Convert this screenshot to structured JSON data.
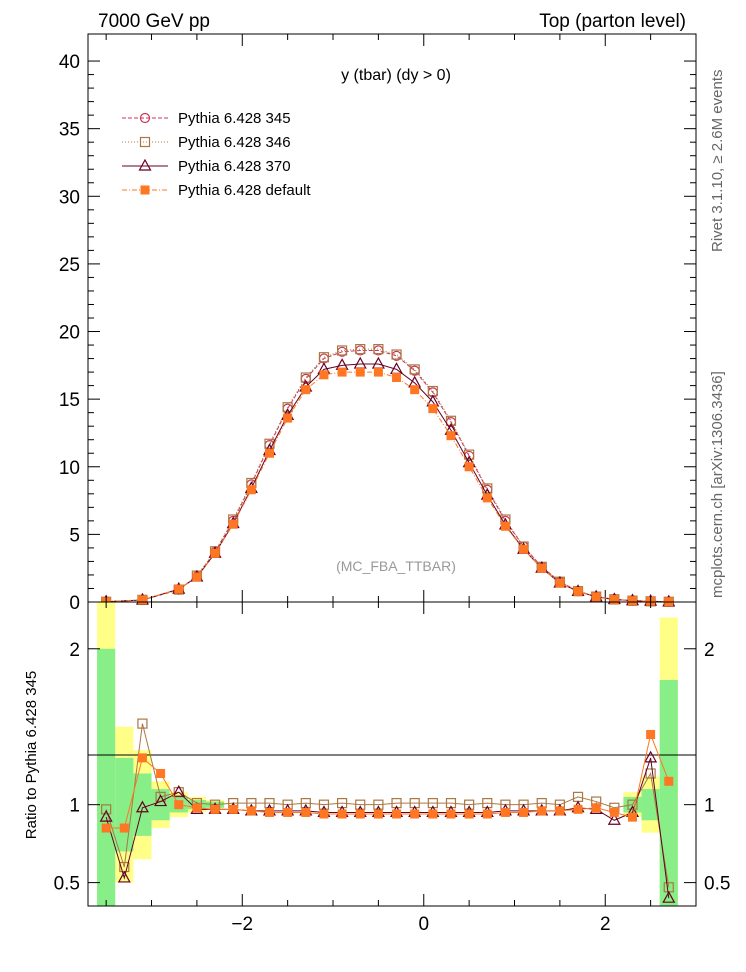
{
  "header": {
    "left": "7000 GeV pp",
    "right": "Top (parton level)"
  },
  "side_text": {
    "rivet": "Rivet 3.1.10, ≥ 2.6M events",
    "mcplots": "mcplots.cern.ch [arXiv:1306.3436]"
  },
  "analysis_tag": "(MC_FBA_TTBAR)",
  "chart_data": [
    {
      "type": "line",
      "panel": "main",
      "title": "y (tbar) (dy > 0)",
      "xlabel": "",
      "ylabel": "",
      "xlim": [
        -3.7,
        3.0
      ],
      "ylim": [
        0,
        42
      ],
      "yticks": [
        0,
        5,
        10,
        15,
        20,
        25,
        30,
        35,
        40
      ],
      "ytick_labels": [
        "0",
        "5",
        "10",
        "15",
        "20",
        "25",
        "30",
        "35",
        "40"
      ],
      "legend_position": "top-left",
      "series": [
        {
          "name": "Pythia 6.428 345",
          "color": "#cc3355",
          "marker": "open-circle",
          "dash": "4,2",
          "x": [
            -3.5,
            -3.1,
            -2.7,
            -2.5,
            -2.3,
            -2.1,
            -1.9,
            -1.7,
            -1.5,
            -1.3,
            -1.1,
            -0.9,
            -0.7,
            -0.5,
            -0.3,
            -0.1,
            0.1,
            0.3,
            0.5,
            0.7,
            0.9,
            1.1,
            1.3,
            1.5,
            1.7,
            1.9,
            2.1,
            2.3,
            2.5,
            2.7
          ],
          "y": [
            0.02,
            0.15,
            0.9,
            1.9,
            3.7,
            6.0,
            8.7,
            11.6,
            14.3,
            16.5,
            18.0,
            18.5,
            18.6,
            18.6,
            18.2,
            17.1,
            15.5,
            13.3,
            10.8,
            8.3,
            6.0,
            4.1,
            2.6,
            1.5,
            0.8,
            0.4,
            0.2,
            0.1,
            0.05,
            0.02
          ]
        },
        {
          "name": "Pythia 6.428 346",
          "color": "#aa7744",
          "marker": "open-square",
          "dash": "1,2",
          "x": [
            -3.5,
            -3.1,
            -2.7,
            -2.5,
            -2.3,
            -2.1,
            -1.9,
            -1.7,
            -1.5,
            -1.3,
            -1.1,
            -0.9,
            -0.7,
            -0.5,
            -0.3,
            -0.1,
            0.1,
            0.3,
            0.5,
            0.7,
            0.9,
            1.1,
            1.3,
            1.5,
            1.7,
            1.9,
            2.1,
            2.3,
            2.5,
            2.7
          ],
          "y": [
            0.02,
            0.16,
            0.92,
            1.95,
            3.75,
            6.1,
            8.8,
            11.7,
            14.4,
            16.6,
            18.1,
            18.6,
            18.7,
            18.7,
            18.3,
            17.2,
            15.6,
            13.4,
            10.9,
            8.4,
            6.1,
            4.1,
            2.6,
            1.5,
            0.8,
            0.4,
            0.2,
            0.1,
            0.05,
            0.02
          ]
        },
        {
          "name": "Pythia 6.428 370",
          "color": "#660022",
          "marker": "open-triangle",
          "dash": "",
          "x": [
            -3.5,
            -3.1,
            -2.7,
            -2.5,
            -2.3,
            -2.1,
            -1.9,
            -1.7,
            -1.5,
            -1.3,
            -1.1,
            -0.9,
            -0.7,
            -0.5,
            -0.3,
            -0.1,
            0.1,
            0.3,
            0.5,
            0.7,
            0.9,
            1.1,
            1.3,
            1.5,
            1.7,
            1.9,
            2.1,
            2.3,
            2.5,
            2.7
          ],
          "y": [
            0.02,
            0.15,
            0.95,
            1.85,
            3.6,
            5.8,
            8.4,
            11.2,
            13.8,
            15.9,
            17.2,
            17.5,
            17.6,
            17.6,
            17.2,
            16.2,
            14.8,
            12.7,
            10.3,
            7.9,
            5.7,
            3.9,
            2.5,
            1.4,
            0.78,
            0.38,
            0.18,
            0.1,
            0.06,
            0.01
          ]
        },
        {
          "name": "Pythia 6.428 default",
          "color": "#ff7722",
          "marker": "filled-square",
          "dash": "5,2,1,2",
          "x": [
            -3.5,
            -3.1,
            -2.7,
            -2.5,
            -2.3,
            -2.1,
            -1.9,
            -1.7,
            -1.5,
            -1.3,
            -1.1,
            -0.9,
            -0.7,
            -0.5,
            -0.3,
            -0.1,
            0.1,
            0.3,
            0.5,
            0.7,
            0.9,
            1.1,
            1.3,
            1.5,
            1.7,
            1.9,
            2.1,
            2.3,
            2.5,
            2.7
          ],
          "y": [
            0.02,
            0.16,
            0.95,
            1.85,
            3.6,
            5.75,
            8.3,
            11.0,
            13.6,
            15.7,
            16.8,
            17.0,
            17.0,
            17.0,
            16.6,
            15.7,
            14.3,
            12.3,
            10.0,
            7.7,
            5.6,
            3.9,
            2.5,
            1.4,
            0.78,
            0.38,
            0.18,
            0.1,
            0.06,
            0.02
          ]
        }
      ]
    },
    {
      "type": "line",
      "panel": "ratio",
      "title": "",
      "xlabel": "",
      "ylabel": "Ratio to Pythia 6.428 345",
      "xlim": [
        -3.7,
        3.0
      ],
      "ylim": [
        0.35,
        2.3
      ],
      "xticks": [
        -2,
        0,
        2
      ],
      "xtick_labels": [
        "−2",
        "0",
        "2"
      ],
      "yticks": [
        0.5,
        1,
        2
      ],
      "ytick_labels": [
        "0.5",
        "1",
        "2"
      ],
      "bands": [
        {
          "name": "1-sigma",
          "color": "#88ee88",
          "x": [
            -3.5,
            -3.3,
            -3.1,
            -2.9,
            -2.7,
            -2.5,
            -2.3,
            2.3,
            2.5,
            2.7
          ],
          "half": [
            1.0,
            0.3,
            0.2,
            0.1,
            0.05,
            0.03,
            0.02,
            0.05,
            0.1,
            0.8
          ]
        },
        {
          "name": "2-sigma",
          "color": "#ffff88",
          "x": [
            -3.5,
            -3.3,
            -3.1,
            -2.9,
            -2.7,
            -2.5,
            -2.3,
            2.3,
            2.5,
            2.7
          ],
          "half": [
            1.4,
            0.5,
            0.35,
            0.15,
            0.08,
            0.05,
            0.03,
            0.08,
            0.18,
            1.2
          ]
        }
      ],
      "series": [
        {
          "name": "Pythia 6.428 346",
          "color": "#aa7744",
          "marker": "open-square",
          "x": [
            -3.5,
            -3.3,
            -3.1,
            -2.9,
            -2.7,
            -2.5,
            -2.3,
            -2.1,
            -1.9,
            -1.7,
            -1.5,
            -1.3,
            -1.1,
            -0.9,
            -0.7,
            -0.5,
            -0.3,
            -0.1,
            0.1,
            0.3,
            0.5,
            0.7,
            0.9,
            1.1,
            1.3,
            1.5,
            1.7,
            1.9,
            2.1,
            2.3,
            2.5,
            2.7
          ],
          "y": [
            0.97,
            0.6,
            1.52,
            1.05,
            1.08,
            1.01,
            1.0,
            1.01,
            1.01,
            1.01,
            1.0,
            1.01,
            1.0,
            1.01,
            1.0,
            1.0,
            1.01,
            1.01,
            1.01,
            1.01,
            1.0,
            1.01,
            1.0,
            1.0,
            1.01,
            1.0,
            1.05,
            1.02,
            0.98,
            1.0,
            1.2,
            0.47
          ]
        },
        {
          "name": "Pythia 6.428 370",
          "color": "#660022",
          "marker": "open-triangle",
          "x": [
            -3.5,
            -3.3,
            -3.1,
            -2.9,
            -2.7,
            -2.5,
            -2.3,
            -2.1,
            -1.9,
            -1.7,
            -1.5,
            -1.3,
            -1.1,
            -0.9,
            -0.7,
            -0.5,
            -0.3,
            -0.1,
            0.1,
            0.3,
            0.5,
            0.7,
            0.9,
            1.1,
            1.3,
            1.5,
            1.7,
            1.9,
            2.1,
            2.3,
            2.5,
            2.7
          ],
          "y": [
            0.92,
            0.53,
            0.98,
            1.02,
            1.08,
            0.97,
            0.97,
            0.97,
            0.96,
            0.96,
            0.96,
            0.96,
            0.95,
            0.95,
            0.95,
            0.95,
            0.95,
            0.95,
            0.95,
            0.95,
            0.95,
            0.95,
            0.96,
            0.96,
            0.96,
            0.96,
            0.98,
            0.97,
            0.9,
            0.95,
            1.3,
            0.4
          ]
        },
        {
          "name": "Pythia 6.428 default",
          "color": "#ff7722",
          "marker": "filled-square",
          "x": [
            -3.5,
            -3.3,
            -3.1,
            -2.9,
            -2.7,
            -2.5,
            -2.3,
            -2.1,
            -1.9,
            -1.7,
            -1.5,
            -1.3,
            -1.1,
            -0.9,
            -0.7,
            -0.5,
            -0.3,
            -0.1,
            0.1,
            0.3,
            0.5,
            0.7,
            0.9,
            1.1,
            1.3,
            1.5,
            1.7,
            1.9,
            2.1,
            2.3,
            2.5,
            2.7
          ],
          "y": [
            0.85,
            0.85,
            1.3,
            1.2,
            1.0,
            0.98,
            0.97,
            0.97,
            0.96,
            0.95,
            0.95,
            0.95,
            0.94,
            0.94,
            0.94,
            0.94,
            0.94,
            0.94,
            0.94,
            0.94,
            0.94,
            0.94,
            0.95,
            0.95,
            0.96,
            0.96,
            0.97,
            0.98,
            0.95,
            0.92,
            1.45,
            1.15
          ]
        }
      ]
    }
  ]
}
